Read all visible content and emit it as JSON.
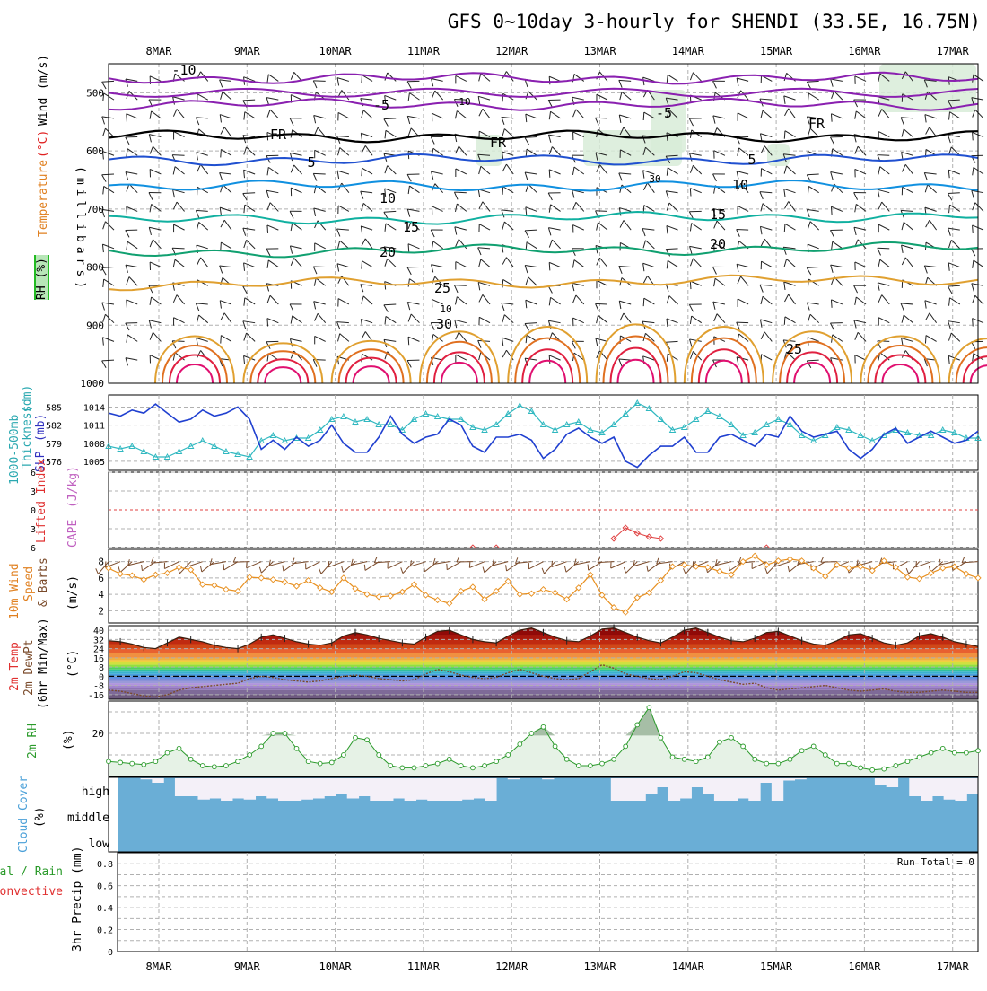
{
  "title": "GFS 0~10day 3-hourly for SHENDI (33.5E, 16.75N)",
  "dates": [
    "8MAR",
    "9MAR",
    "10MAR",
    "11MAR",
    "12MAR",
    "13MAR",
    "14MAR",
    "15MAR",
    "16MAR",
    "17MAR"
  ],
  "colors": {
    "purple": "#8a20b0",
    "black": "#000000",
    "blue": "#2050d0",
    "lightblue": "#1090e0",
    "teal": "#10b0a0",
    "green": "#10a070",
    "gold": "#e0a030",
    "orange": "#e07020",
    "red": "#e02040",
    "magenta": "#e01070",
    "cyan": "#30b8c0",
    "navy": "#2040d0",
    "windorange": "#e89020",
    "cloud": "#6aaed6",
    "rhgreen": "#2a9a2a",
    "rhfill": "#e6f2e6"
  },
  "chart_data": [
    {
      "type": "contour",
      "panel": "upper-air",
      "ylabel": "Temperature (°C) Wind (m/s)",
      "ylabel_parts": [
        "RH (%)",
        "Temperature",
        "(°C)",
        "Wind",
        "(m/s)",
        "(millibars)"
      ],
      "ylim": [
        1000,
        450
      ],
      "yticks": [
        500,
        600,
        700,
        800,
        900,
        1000
      ],
      "contour_labels": [
        "-10",
        "-5",
        "FR",
        "FR",
        "FR",
        "-5",
        "5",
        "5",
        "10",
        "10",
        "15",
        "15",
        "20",
        "20",
        "25",
        "30",
        "25",
        "10",
        "10",
        "30"
      ],
      "isotherms_mb": [
        {
          "label": "-10",
          "level": 475
        },
        {
          "label": "-5",
          "level": 520
        },
        {
          "label": "FR",
          "level": 575
        },
        {
          "label": "5",
          "level": 615
        },
        {
          "label": "10",
          "level": 660
        },
        {
          "label": "15",
          "level": 720
        },
        {
          "label": "20",
          "level": 775
        },
        {
          "label": "25",
          "level": 830
        }
      ]
    },
    {
      "type": "line",
      "panel": "thickness-slp",
      "ylabel_left": "1000-500mb Thickness (dm)",
      "ylabel_right": "SLP (mb)",
      "ylabel_left_parts": [
        "1000-500mb",
        "Thickness",
        "(dm)"
      ],
      "ylabel_right_parts": [
        "SLP",
        "(mb)"
      ],
      "yticks_left": [
        "585",
        "582",
        "579",
        "576"
      ],
      "yticks_right": [
        "1014",
        "1011",
        "1008",
        "1005"
      ],
      "series": [
        {
          "name": "1000-500mb Thickness (dm)",
          "values": [
            584,
            583.5,
            584.5,
            584,
            585.5,
            584,
            582.5,
            583,
            584.5,
            583.5,
            584,
            585,
            583,
            578,
            579.5,
            578,
            580,
            578.5,
            579.5,
            582,
            579,
            577.5,
            577.5,
            580,
            583.5,
            580.5,
            579,
            580,
            580.5,
            583,
            582,
            578.5,
            577.5,
            580,
            580,
            580.5,
            579.5,
            576.5,
            578,
            580.5,
            581.5,
            580,
            579,
            580,
            576,
            575,
            577,
            578.5,
            578.5,
            580,
            577.5,
            577.5,
            580,
            580.5,
            579.5,
            578.5,
            580.5,
            580,
            583.5,
            581,
            580,
            580.5,
            581,
            578,
            576.5,
            578,
            580.5,
            581.5,
            579,
            580,
            581,
            580,
            579,
            579.5,
            581
          ]
        },
        {
          "name": "SLP (mb)",
          "values": [
            1007,
            1006.5,
            1007,
            1006,
            1005,
            1005,
            1006,
            1007,
            1008,
            1007,
            1006,
            1005.5,
            1005,
            1008,
            1009,
            1008,
            1008.5,
            1008.5,
            1010,
            1012,
            1012.5,
            1011.5,
            1012,
            1011,
            1011,
            1010,
            1012,
            1013,
            1012.5,
            1012,
            1012,
            1010.5,
            1010,
            1011,
            1013,
            1014.5,
            1013.5,
            1011,
            1010,
            1011,
            1011.5,
            1010,
            1009.5,
            1011,
            1013,
            1015,
            1014,
            1012,
            1010,
            1010.5,
            1012,
            1013.5,
            1012.5,
            1011,
            1009,
            1009.5,
            1011,
            1012,
            1011,
            1009,
            1008,
            1009,
            1010.5,
            1010,
            1009,
            1008,
            1009,
            1010,
            1009.5,
            1009,
            1009,
            1010,
            1009.5,
            1008.5,
            1008.5
          ]
        }
      ]
    },
    {
      "type": "line",
      "panel": "cape-li",
      "ylabel_parts": [
        "Lifted Index",
        "CAPE",
        "(J/kg)"
      ],
      "yticks": [
        "6",
        "3",
        "0",
        "3",
        "6"
      ],
      "series": [
        {
          "name": "Lifted Index",
          "values": [
            9,
            9,
            9,
            9,
            9,
            9,
            9,
            9,
            9,
            9,
            9,
            9,
            9,
            9,
            9,
            9,
            9,
            9,
            9,
            9,
            9,
            9,
            9,
            9,
            9,
            9,
            9,
            9,
            9,
            9,
            9,
            9,
            9,
            9,
            9,
            9,
            9,
            9,
            9,
            9,
            9,
            9,
            9,
            9,
            9,
            9,
            9,
            9,
            9,
            9,
            9,
            9,
            9,
            9,
            9,
            9,
            9,
            9,
            9,
            9,
            9,
            9,
            9,
            9,
            9,
            9,
            9,
            9,
            9,
            9,
            9,
            9,
            9,
            9,
            9
          ]
        }
      ]
    },
    {
      "type": "line",
      "panel": "wind10m",
      "ylabel_parts": [
        "10m Wind",
        "Speed",
        "& Barbs",
        "(m/s)"
      ],
      "yticks": [
        2,
        4,
        6,
        8
      ],
      "ylim": [
        0.5,
        9.5
      ],
      "series": [
        {
          "name": "10m Wind Speed (m/s)",
          "values": [
            7.2,
            6.5,
            6.3,
            5.8,
            6.4,
            6.6,
            7.3,
            7.0,
            5.2,
            5.1,
            4.6,
            4.4,
            6.1,
            6.0,
            5.8,
            5.5,
            5.0,
            5.7,
            4.8,
            4.3,
            6.0,
            4.7,
            4.0,
            3.7,
            3.8,
            4.3,
            5.2,
            3.9,
            3.3,
            2.9,
            4.4,
            4.9,
            3.4,
            4.4,
            5.6,
            4.0,
            4.1,
            4.6,
            4.2,
            3.4,
            4.8,
            6.4,
            3.9,
            2.4,
            1.8,
            3.6,
            4.2,
            5.7,
            7.4,
            7.6,
            7.4,
            7.3,
            6.8,
            6.4,
            8.0,
            8.7,
            7.6,
            8.1,
            8.3,
            8.1,
            7.2,
            6.2,
            7.6,
            7.2,
            7.4,
            6.9,
            8.1,
            7.3,
            6.1,
            5.9,
            6.6,
            7.2,
            7.4,
            6.5,
            6.0
          ]
        }
      ]
    },
    {
      "type": "area",
      "panel": "temp-dewpoint",
      "ylabel_parts": [
        "2m Temp",
        "2m DewPt",
        "(6hr Min/Max)",
        "(°C)"
      ],
      "yticks": [
        "40",
        "32",
        "24",
        "16",
        "8",
        "0",
        "-8",
        "-16"
      ],
      "ylim": [
        -20,
        44
      ],
      "series": [
        {
          "name": "2m Temp (°C)",
          "values": [
            31,
            30,
            28,
            25,
            24,
            29,
            34,
            32,
            30,
            27,
            25,
            24,
            28,
            34,
            36,
            33,
            30,
            28,
            27,
            29,
            35,
            38,
            36,
            33,
            31,
            29,
            28,
            34,
            39,
            40,
            36,
            32,
            30,
            29,
            35,
            40,
            42,
            38,
            34,
            31,
            30,
            35,
            41,
            42,
            38,
            34,
            31,
            29,
            34,
            40,
            42,
            38,
            34,
            31,
            30,
            33,
            38,
            39,
            35,
            31,
            28,
            27,
            31,
            36,
            37,
            33,
            29,
            27,
            29,
            35,
            37,
            34,
            30,
            28,
            26
          ]
        },
        {
          "name": "2m DewPt (°C)",
          "values": [
            -12,
            -13,
            -15,
            -17,
            -18,
            -16,
            -12,
            -10,
            -9,
            -8,
            -7,
            -6,
            -2,
            0,
            -1,
            -3,
            -4,
            -5,
            -4,
            -2,
            0,
            1,
            0,
            -2,
            -3,
            -4,
            -3,
            2,
            6,
            4,
            1,
            -1,
            -2,
            -1,
            3,
            6,
            3,
            0,
            -2,
            -3,
            -2,
            4,
            10,
            7,
            2,
            0,
            -2,
            -3,
            0,
            4,
            3,
            0,
            -3,
            -5,
            -7,
            -6,
            -10,
            -12,
            -11,
            -10,
            -9,
            -8,
            -10,
            -12,
            -13,
            -12,
            -11,
            -13,
            -14,
            -14,
            -13,
            -12,
            -13,
            -14,
            -14
          ]
        }
      ]
    },
    {
      "type": "area",
      "panel": "rh",
      "ylabel_parts": [
        "2m RH",
        "(%)"
      ],
      "yticks": [
        20
      ],
      "ylim": [
        0,
        35
      ],
      "series": [
        {
          "name": "2m RH (%)",
          "values": [
            7,
            6.5,
            6,
            5.5,
            7,
            11,
            13,
            8,
            5,
            4.5,
            5,
            7,
            10,
            14,
            20,
            20,
            13,
            7,
            6,
            6.5,
            10,
            18,
            17,
            10,
            5,
            4,
            4,
            5,
            6,
            8,
            5,
            4,
            5,
            7,
            10,
            15,
            20,
            23,
            14,
            8,
            5,
            5,
            6,
            8,
            14,
            24,
            32,
            18,
            9,
            8,
            7,
            9,
            16,
            18,
            14,
            8,
            6,
            6,
            8,
            12,
            14,
            10,
            6,
            6,
            4,
            3,
            3.5,
            5,
            7,
            9,
            11,
            13,
            11,
            11,
            12
          ]
        }
      ]
    },
    {
      "type": "heatmap",
      "panel": "cloud-cover",
      "ylabel_parts": [
        "Cloud Cover",
        "(%)"
      ],
      "levels": [
        "high",
        "middle",
        "low"
      ],
      "series": [
        {
          "name": "high cloud (%)",
          "values": [
            100,
            100,
            95,
            80,
            100,
            20,
            20,
            5,
            10,
            0,
            10,
            5,
            20,
            10,
            0,
            0,
            5,
            10,
            20,
            30,
            10,
            20,
            0,
            0,
            10,
            0,
            5,
            0,
            0,
            0,
            5,
            10,
            0,
            100,
            95,
            100,
            100,
            95,
            100,
            100,
            100,
            100,
            100,
            0,
            0,
            0,
            30,
            60,
            0,
            10,
            60,
            30,
            0,
            0,
            10,
            0,
            80,
            0,
            90,
            95,
            100,
            100,
            100,
            100,
            100,
            100,
            70,
            60,
            100,
            20,
            0,
            20,
            5,
            0,
            30
          ]
        }
      ]
    },
    {
      "type": "bar",
      "panel": "precip",
      "ylabel": "3hr Precip (mm)",
      "legend": [
        "Total / Rain",
        "Convective"
      ],
      "annotation": "Run Total = 0",
      "yticks": [
        "0.8",
        "0.6",
        "0.4",
        "0.2",
        "0"
      ],
      "ylim": [
        0,
        0.9
      ],
      "series": [
        {
          "name": "Total / Rain",
          "values": []
        },
        {
          "name": "Convective",
          "values": []
        }
      ]
    }
  ]
}
